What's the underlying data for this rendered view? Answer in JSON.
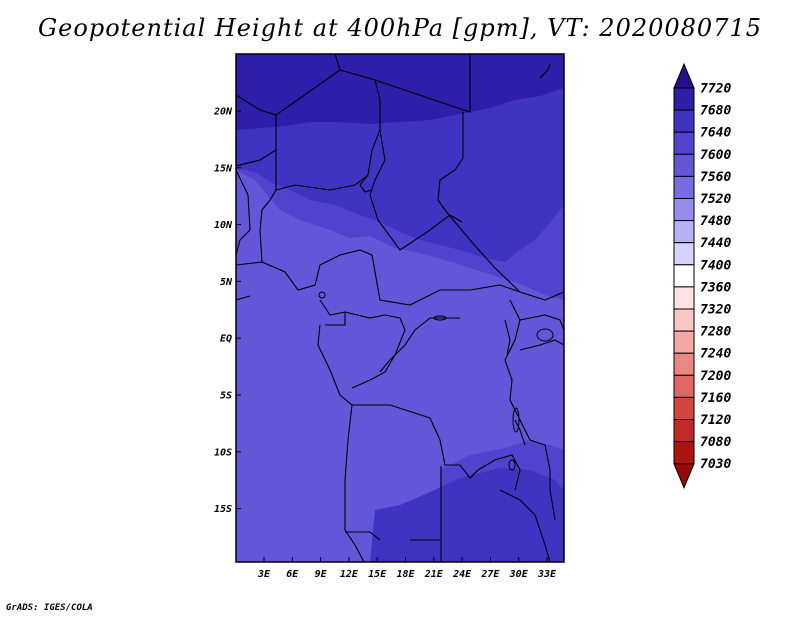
{
  "title": "Geopotential Height at 400hPa [gpm], VT: 2020080715",
  "credit": "GrADS: IGES/COLA",
  "map": {
    "lat_ticks": [
      "20N",
      "15N",
      "10N",
      "5N",
      "EQ",
      "5S",
      "10S",
      "15S"
    ],
    "lon_ticks": [
      "3E",
      "6E",
      "9E",
      "12E",
      "15E",
      "18E",
      "21E",
      "24E",
      "27E",
      "30E",
      "33E"
    ],
    "colors": {
      "zone_7680": "#2e1ea9",
      "zone_7640": "#3f33c2",
      "zone_7600": "#5143ce",
      "zone_7560": "#6456d8"
    }
  },
  "colorbar": {
    "levels": [
      "7720",
      "7680",
      "7640",
      "7600",
      "7560",
      "7520",
      "7480",
      "7440",
      "7400",
      "7360",
      "7320",
      "7280",
      "7240",
      "7200",
      "7160",
      "7120",
      "7080",
      "7030"
    ],
    "colors": [
      "#2a0c8f",
      "#2e1ea9",
      "#3f33c2",
      "#5143ce",
      "#6456d8",
      "#786ce3",
      "#958cee",
      "#b6b0f6",
      "#d6d3fb",
      "#ffffff",
      "#fde4e2",
      "#f9c8c5",
      "#f2a8a4",
      "#e98883",
      "#df6661",
      "#d24540",
      "#c22a25",
      "#ad1410",
      "#960a06"
    ]
  }
}
